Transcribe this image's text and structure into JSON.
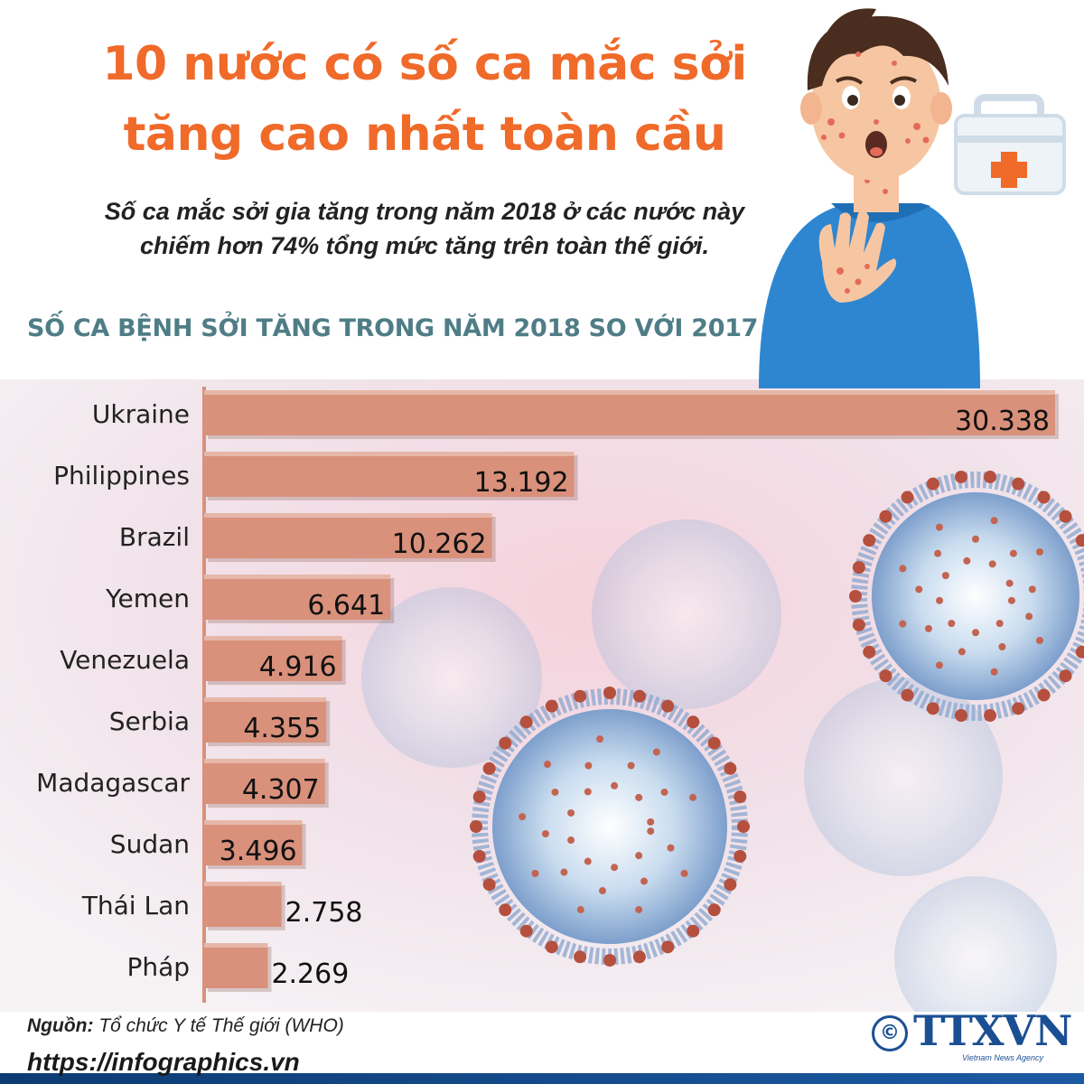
{
  "header": {
    "title_line1": "10 nước có số ca mắc sởi",
    "title_line2": "tăng cao nhất toàn cầu",
    "subtitle_line1": "Số ca mắc sởi gia tăng trong năm 2018 ở các nước này",
    "subtitle_line2": "chiếm hơn 74% tổng mức tăng trên toàn thế giới."
  },
  "chart_data": {
    "type": "bar",
    "orientation": "horizontal",
    "title": "SỐ CA BỆNH SỞI TĂNG TRONG NĂM 2018 SO VỚI 2017",
    "categories": [
      "Ukraine",
      "Philippines",
      "Brazil",
      "Yemen",
      "Venezuela",
      "Serbia",
      "Madagascar",
      "Sudan",
      "Thái Lan",
      "Pháp"
    ],
    "values": [
      30338,
      13192,
      10262,
      6641,
      4916,
      4355,
      4307,
      3496,
      2758,
      2269
    ],
    "value_labels": [
      "30.338",
      "13.192",
      "10.262",
      "6.641",
      "4.916",
      "4.355",
      "4.307",
      "3.496",
      "2.758",
      "2.269"
    ],
    "bar_color": "#d9917b",
    "grid": false
  },
  "footer": {
    "source_key": "Nguồn:",
    "source_value": "Tổ chức Y tế Thế giới (WHO)",
    "url": "https://infographics.vn",
    "logo_mark": "©",
    "logo_text": "TTXVN",
    "logo_sub": "Vietnam News Agency"
  },
  "colors": {
    "title": "#f06a2a",
    "heading": "#4f7d86",
    "logo": "#1b4f93"
  }
}
